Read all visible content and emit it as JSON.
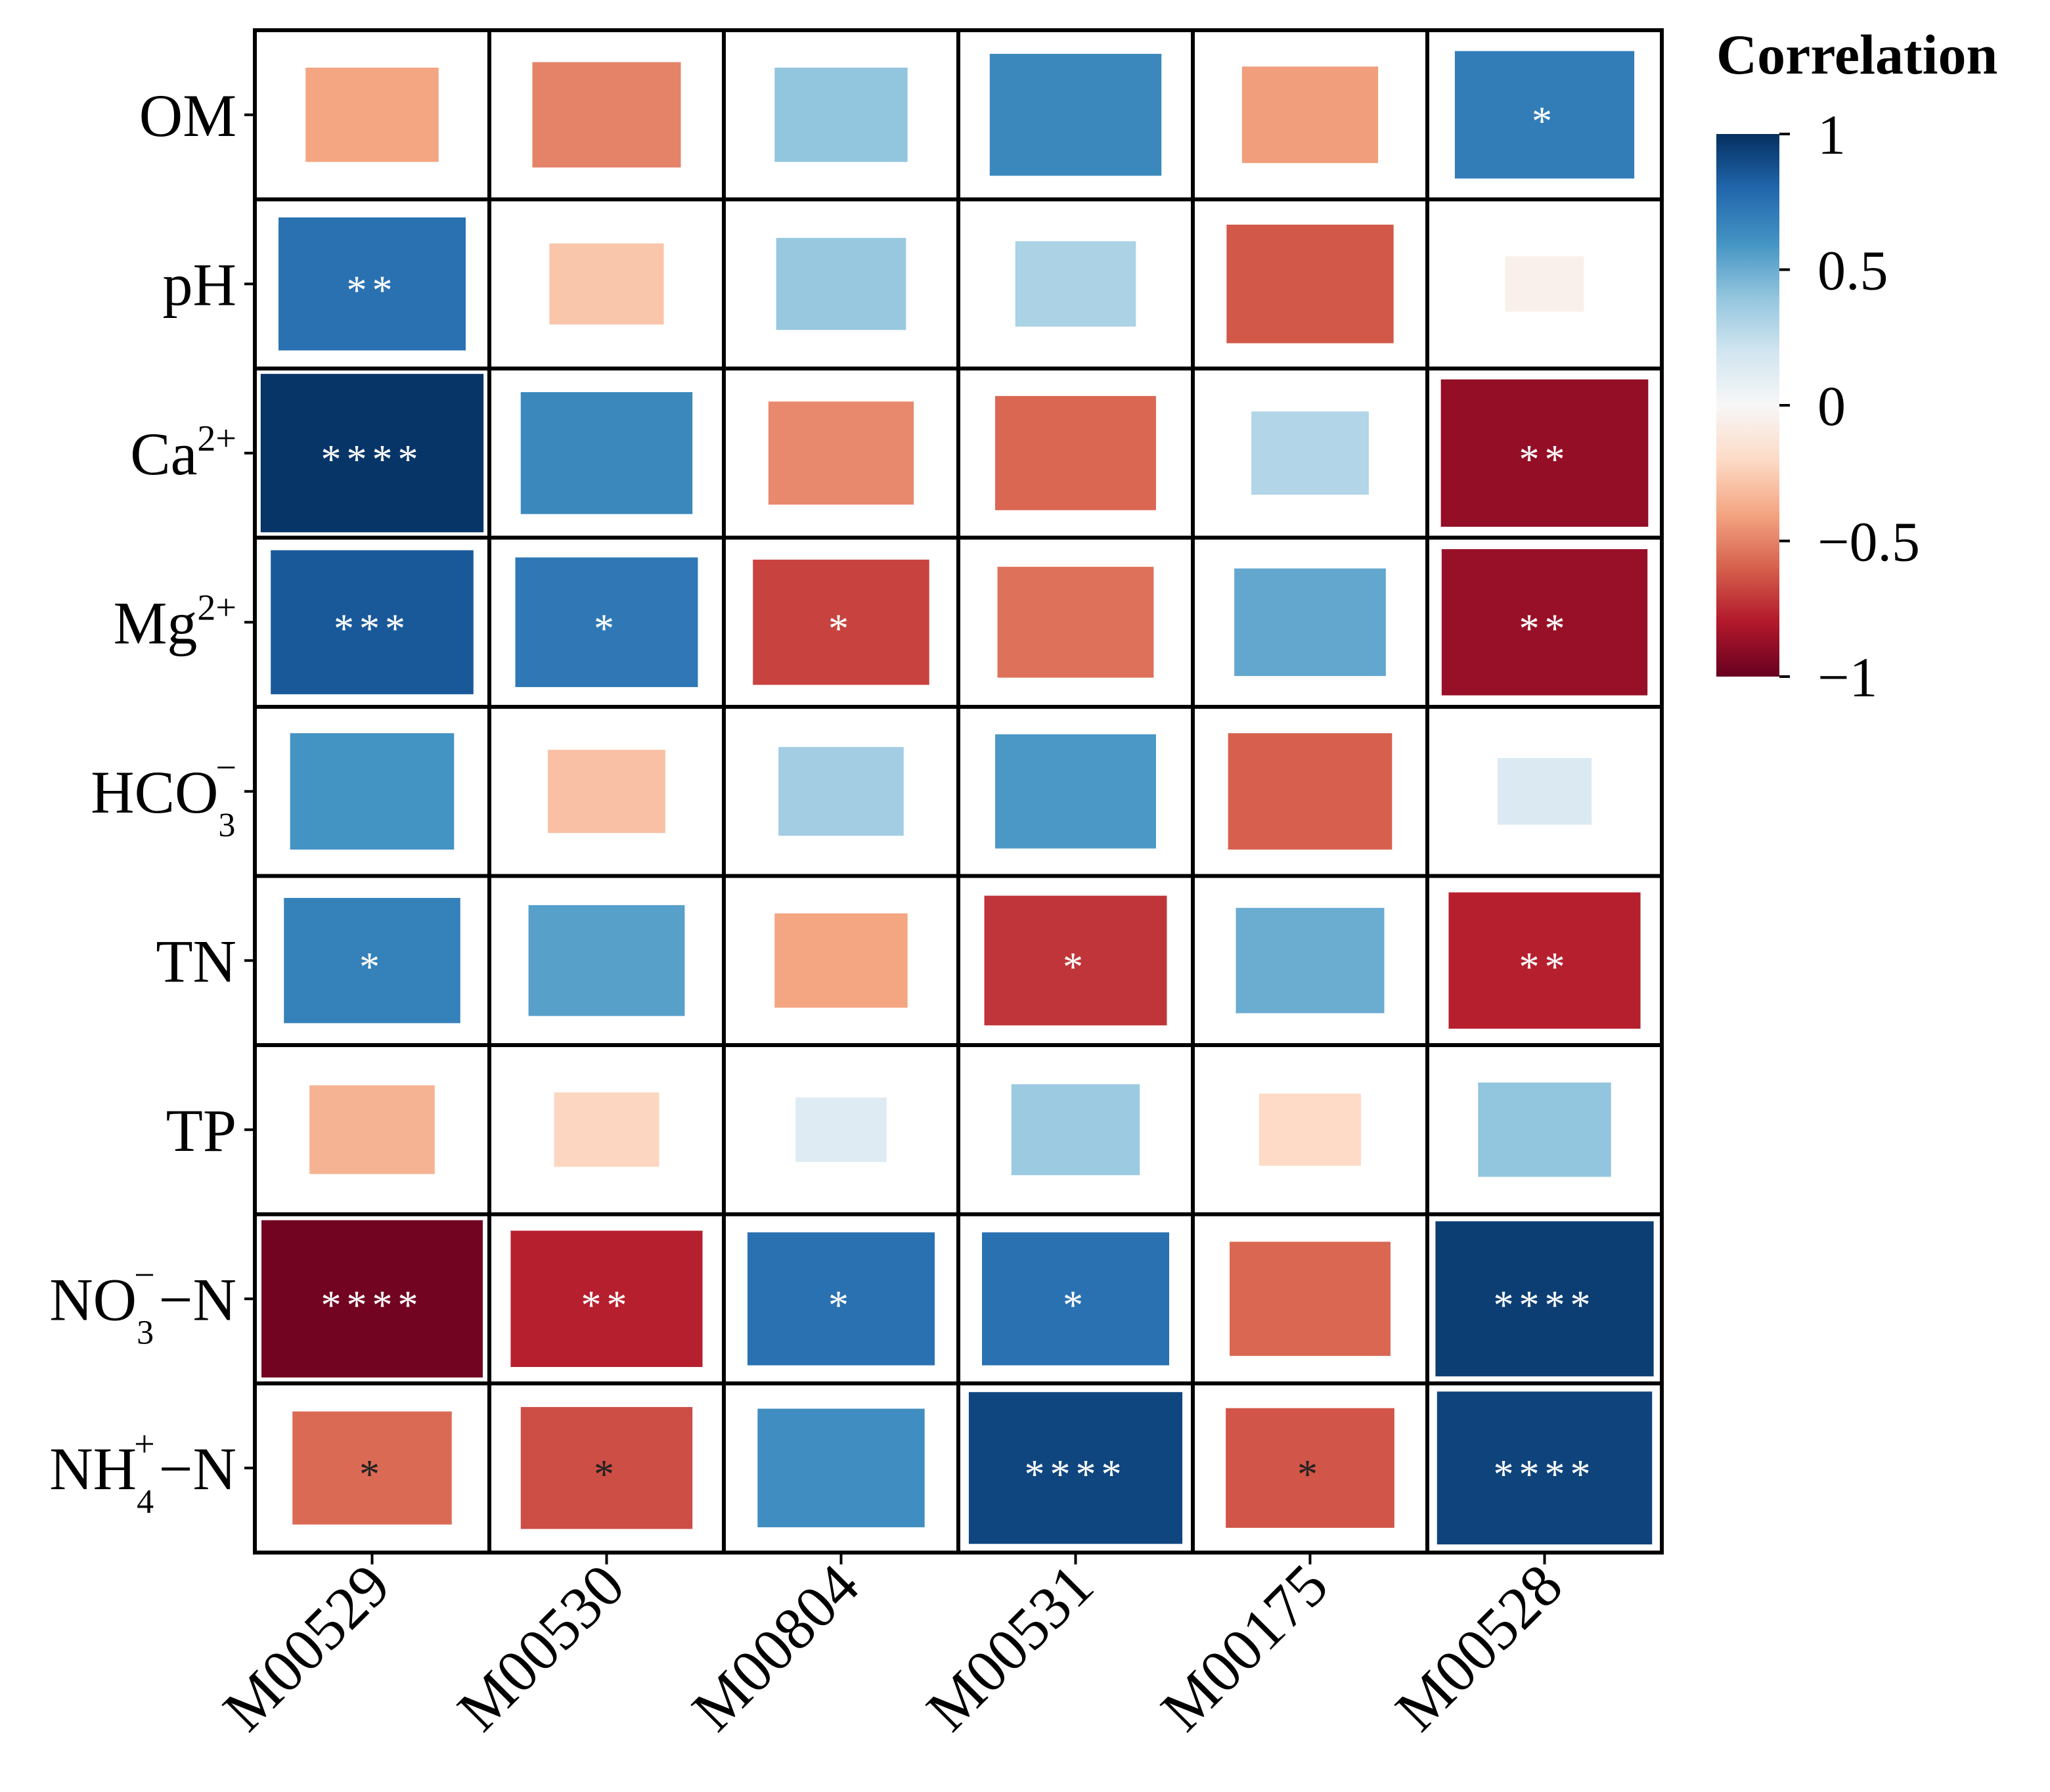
{
  "chart_data": {
    "type": "heatmap",
    "title": "",
    "legend_title": "Correlation",
    "colorbar": {
      "min": -1,
      "max": 1,
      "ticks": [
        {
          "value": 1,
          "label": "1"
        },
        {
          "value": 0.5,
          "label": "0.5"
        },
        {
          "value": 0,
          "label": "0"
        },
        {
          "value": -0.5,
          "label": "−0.5"
        },
        {
          "value": -1,
          "label": "−1"
        }
      ],
      "colors": [
        "#67001f",
        "#b2182b",
        "#d6604d",
        "#f4a582",
        "#fddbc7",
        "#f7f7f7",
        "#d1e5f0",
        "#92c5de",
        "#4393c3",
        "#2166ac",
        "#053061"
      ]
    },
    "rows": [
      {
        "base": "OM",
        "sup": "",
        "sub": "",
        "tail": ""
      },
      {
        "base": "pH",
        "sup": "",
        "sub": "",
        "tail": ""
      },
      {
        "base": "Ca",
        "sup": "2+",
        "sub": "",
        "tail": ""
      },
      {
        "base": "Mg",
        "sup": "2+",
        "sub": "",
        "tail": ""
      },
      {
        "base": "HCO",
        "sup": "−",
        "sub": "3",
        "tail": ""
      },
      {
        "base": "TN",
        "sup": "",
        "sub": "",
        "tail": ""
      },
      {
        "base": "TP",
        "sup": "",
        "sub": "",
        "tail": ""
      },
      {
        "base": "NO",
        "sup": "−",
        "sub": "3",
        "tail": "−N"
      },
      {
        "base": "NH",
        "sup": "+",
        "sub": "4",
        "tail": "−N"
      }
    ],
    "columns": [
      "M00529",
      "M00530",
      "M00804",
      "M00531",
      "M00175",
      "M00528"
    ],
    "values": [
      [
        -0.4,
        -0.5,
        0.4,
        0.65,
        -0.42,
        0.7
      ],
      [
        0.75,
        -0.28,
        0.38,
        0.32,
        -0.62,
        -0.05
      ],
      [
        0.98,
        0.65,
        -0.48,
        -0.58,
        0.3,
        -0.88
      ],
      [
        0.85,
        0.72,
        -0.68,
        -0.55,
        0.52,
        -0.87
      ],
      [
        0.6,
        -0.3,
        0.35,
        0.58,
        -0.6,
        0.15
      ],
      [
        0.68,
        0.55,
        -0.4,
        -0.72,
        0.5,
        -0.78
      ],
      [
        -0.35,
        -0.22,
        0.13,
        0.37,
        -0.2,
        0.4
      ],
      [
        -0.97,
        -0.78,
        0.75,
        0.75,
        -0.58,
        0.95
      ],
      [
        -0.57,
        -0.65,
        0.62,
        0.92,
        -0.63,
        0.93
      ]
    ],
    "significance": [
      [
        "",
        "",
        "",
        "",
        "",
        "*"
      ],
      [
        "**",
        "",
        "",
        "",
        "",
        ""
      ],
      [
        "****",
        "",
        "",
        "",
        "",
        "**"
      ],
      [
        "***",
        "*",
        "*",
        "",
        "",
        "**"
      ],
      [
        "",
        "",
        "",
        "",
        "",
        ""
      ],
      [
        "*",
        "",
        "",
        "*",
        "",
        "**"
      ],
      [
        "",
        "",
        "",
        "",
        "",
        ""
      ],
      [
        "****",
        "**",
        "*",
        "*",
        "",
        "****"
      ],
      [
        "*",
        "*",
        "",
        "****",
        "*",
        "****"
      ]
    ]
  }
}
